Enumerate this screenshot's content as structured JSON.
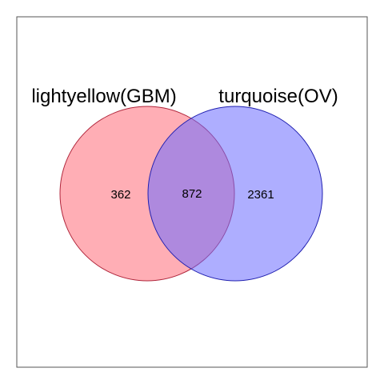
{
  "diagram": {
    "type": "venn",
    "sets": [
      {
        "label": "lightyellow(GBM)",
        "fill": "#ff6b78",
        "fill_opacity": 0.55,
        "stroke": "#b0243a"
      },
      {
        "label": "turquoise(OV)",
        "fill": "#6b6bff",
        "fill_opacity": 0.55,
        "stroke": "#2020b0"
      }
    ],
    "counts": {
      "only_a": "362",
      "intersection": "872",
      "only_b": "2361"
    },
    "frame_color": "#555555"
  }
}
